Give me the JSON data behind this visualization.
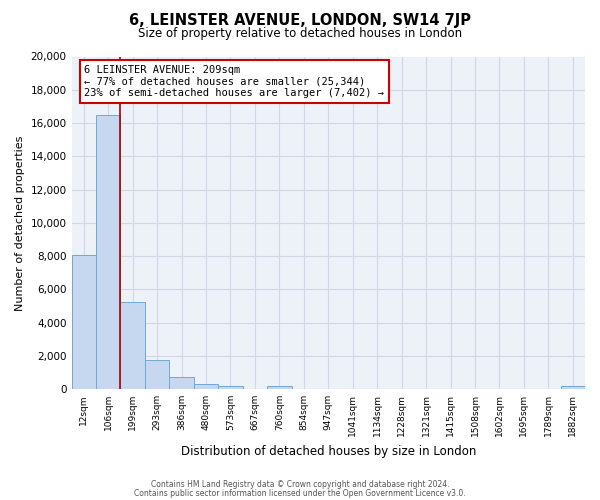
{
  "title": "6, LEINSTER AVENUE, LONDON, SW14 7JP",
  "subtitle": "Size of property relative to detached houses in London",
  "xlabel": "Distribution of detached houses by size in London",
  "ylabel": "Number of detached properties",
  "bar_labels": [
    "12sqm",
    "106sqm",
    "199sqm",
    "293sqm",
    "386sqm",
    "480sqm",
    "573sqm",
    "667sqm",
    "760sqm",
    "854sqm",
    "947sqm",
    "1041sqm",
    "1134sqm",
    "1228sqm",
    "1321sqm",
    "1415sqm",
    "1508sqm",
    "1602sqm",
    "1695sqm",
    "1789sqm",
    "1882sqm"
  ],
  "bar_values": [
    8050,
    16500,
    5250,
    1750,
    750,
    300,
    200,
    0,
    175,
    0,
    0,
    0,
    0,
    0,
    0,
    0,
    0,
    0,
    0,
    0,
    175
  ],
  "bar_color": "#c5d8f0",
  "bar_edgecolor": "#6fa8d6",
  "ylim": [
    0,
    20000
  ],
  "yticks": [
    0,
    2000,
    4000,
    6000,
    8000,
    10000,
    12000,
    14000,
    16000,
    18000,
    20000
  ],
  "vline_color": "#aa0000",
  "annotation_title": "6 LEINSTER AVENUE: 209sqm",
  "annotation_line1": "← 77% of detached houses are smaller (25,344)",
  "annotation_line2": "23% of semi-detached houses are larger (7,402) →",
  "annotation_box_color": "#ffffff",
  "annotation_box_edgecolor": "#cc0000",
  "footer1": "Contains HM Land Registry data © Crown copyright and database right 2024.",
  "footer2": "Contains public sector information licensed under the Open Government Licence v3.0.",
  "background_color": "#edf2f9",
  "grid_color": "#d0d8e8",
  "fig_bg_color": "#ffffff"
}
